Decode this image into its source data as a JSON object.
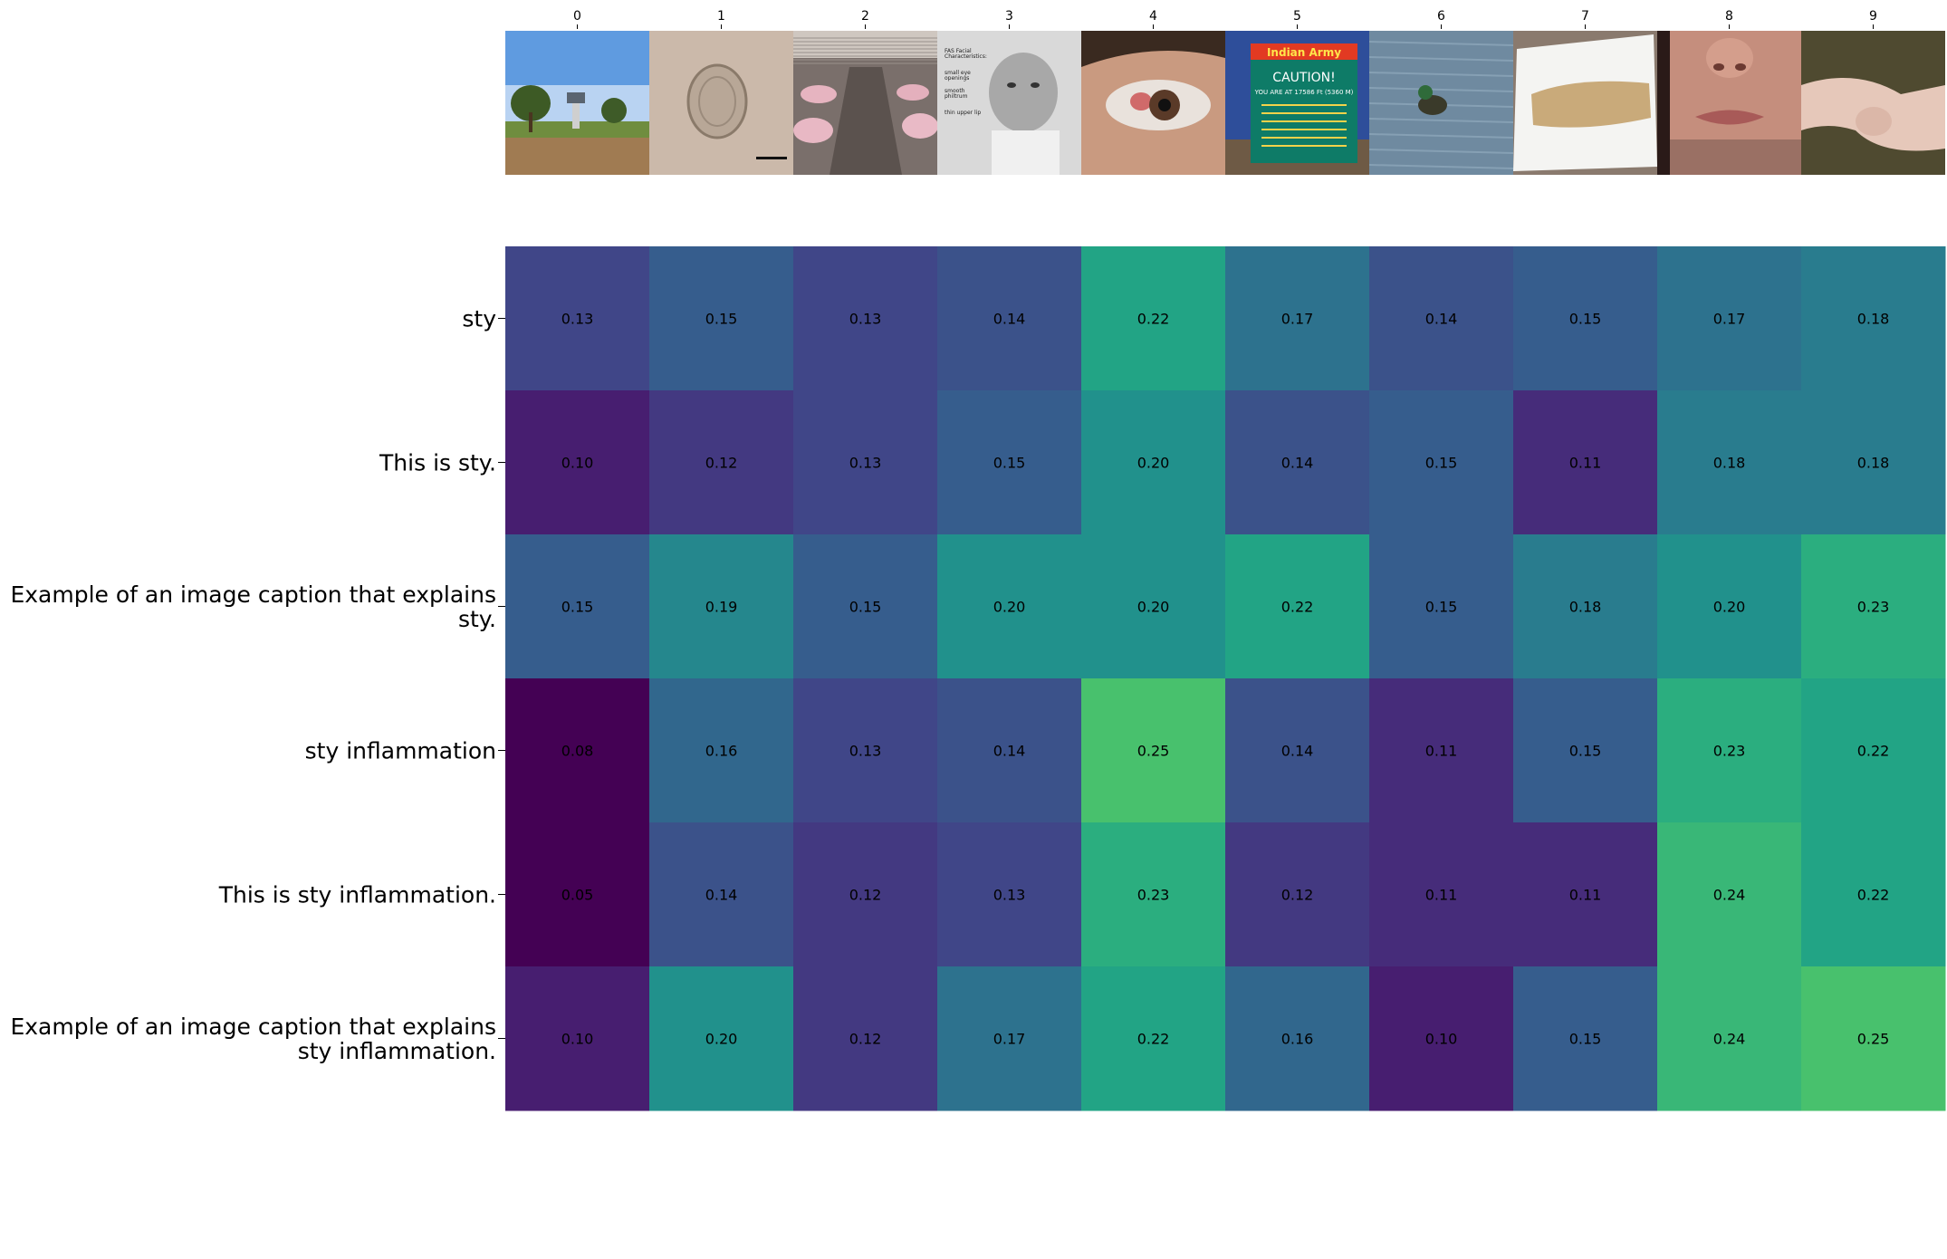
{
  "chart_data": {
    "type": "heatmap",
    "colormap": "viridis",
    "value_range": [
      0.05,
      0.25
    ],
    "grid": false,
    "columns": [
      "0",
      "1",
      "2",
      "3",
      "4",
      "5",
      "6",
      "7",
      "8",
      "9"
    ],
    "thumbnails": [
      {
        "column": "0",
        "subject": "control tower with trees under blue sky",
        "texts": []
      },
      {
        "column": "1",
        "subject": "microscope image of an oval egg with scale bar",
        "texts": []
      },
      {
        "column": "2",
        "subject": "pigs in a long barn with pens",
        "texts": []
      },
      {
        "column": "3",
        "subject": "black and white photo of an infant with annotations",
        "texts": [
          "FAS Facial Characteristics:",
          "small eye openings",
          "smooth philtrum",
          "thin upper lip"
        ]
      },
      {
        "column": "4",
        "subject": "close-up of an eye with a swollen red eyelid",
        "texts": []
      },
      {
        "column": "5",
        "subject": "green caution signboard with red header",
        "texts": [
          "Indian Army",
          "CAUTION!",
          "YOU ARE AT 17586 Ft (5360 M)"
        ]
      },
      {
        "column": "6",
        "subject": "duck swimming in water",
        "texts": []
      },
      {
        "column": "7",
        "subject": "tan fabric sample pinned on a white board",
        "texts": []
      },
      {
        "column": "8",
        "subject": "close-up of a man's nose and mouth with stubble",
        "texts": []
      },
      {
        "column": "9",
        "subject": "bent elbow with a swelling",
        "texts": []
      }
    ],
    "rows": [
      "sty",
      "This is sty.",
      "Example of an image caption that explains sty.",
      "sty inflammation",
      "This is sty inflammation.",
      "Example of an image caption that explains sty inflammation."
    ],
    "values": [
      [
        0.13,
        0.15,
        0.13,
        0.14,
        0.22,
        0.17,
        0.14,
        0.15,
        0.17,
        0.18
      ],
      [
        0.1,
        0.12,
        0.13,
        0.15,
        0.2,
        0.14,
        0.15,
        0.11,
        0.18,
        0.18
      ],
      [
        0.15,
        0.19,
        0.15,
        0.2,
        0.2,
        0.22,
        0.15,
        0.18,
        0.2,
        0.23
      ],
      [
        0.08,
        0.16,
        0.13,
        0.14,
        0.25,
        0.14,
        0.11,
        0.15,
        0.23,
        0.22
      ],
      [
        0.05,
        0.14,
        0.12,
        0.13,
        0.23,
        0.12,
        0.11,
        0.11,
        0.24,
        0.22
      ],
      [
        0.1,
        0.2,
        0.12,
        0.17,
        0.22,
        0.16,
        0.1,
        0.15,
        0.24,
        0.25
      ]
    ]
  }
}
